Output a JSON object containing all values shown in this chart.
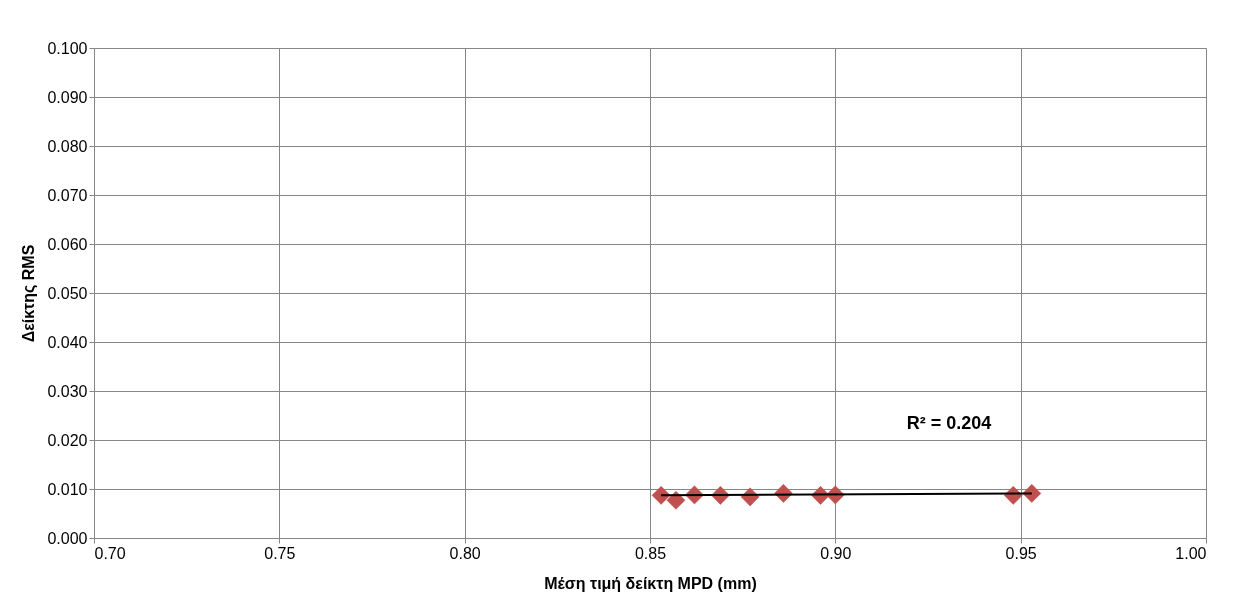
{
  "chart_data": {
    "type": "scatter",
    "xlabel": "Μέση τιμή δείκτη MPD (mm)",
    "ylabel": "Δείκτης RMS",
    "xlim": [
      0.7,
      1.0
    ],
    "xticks": [
      {
        "value": 0.7,
        "label": "0.70"
      },
      {
        "value": 0.75,
        "label": "0.75"
      },
      {
        "value": 0.8,
        "label": "0.80"
      },
      {
        "value": 0.85,
        "label": "0.85"
      },
      {
        "value": 0.9,
        "label": "0.90"
      },
      {
        "value": 0.95,
        "label": "0.95"
      },
      {
        "value": 1.0,
        "label": "1.00"
      }
    ],
    "ylim": [
      0,
      0.1
    ],
    "yticks": [
      {
        "value": 0,
        "label": "0.000"
      },
      {
        "value": 0.01,
        "label": "0.010"
      },
      {
        "value": 0.02,
        "label": "0.020"
      },
      {
        "value": 0.03,
        "label": "0.030"
      },
      {
        "value": 0.04,
        "label": "0.040"
      },
      {
        "value": 0.05,
        "label": "0.050"
      },
      {
        "value": 0.06,
        "label": "0.060"
      },
      {
        "value": 0.07,
        "label": "0.070"
      },
      {
        "value": 0.08,
        "label": "0.080"
      },
      {
        "value": 0.09,
        "label": "0.090"
      },
      {
        "value": 0.1,
        "label": "0.100"
      }
    ],
    "grid": true,
    "series": [
      {
        "type": "scatter",
        "marker": "diamond",
        "color": "#c0504d",
        "x": [
          0.853,
          0.857,
          0.862,
          0.869,
          0.877,
          0.886,
          0.896,
          0.9,
          0.948,
          0.953
        ],
        "values": [
          0.0087,
          0.0077,
          0.0088,
          0.0087,
          0.0084,
          0.0091,
          0.0087,
          0.0088,
          0.0087,
          0.0091
        ]
      },
      {
        "type": "line",
        "marker": "none",
        "line_style": "solid",
        "color": "#000000",
        "x": [
          0.853,
          0.953
        ],
        "values": [
          0.0087,
          0.0091
        ]
      }
    ],
    "annotations": [
      "R² = 0.204"
    ]
  }
}
